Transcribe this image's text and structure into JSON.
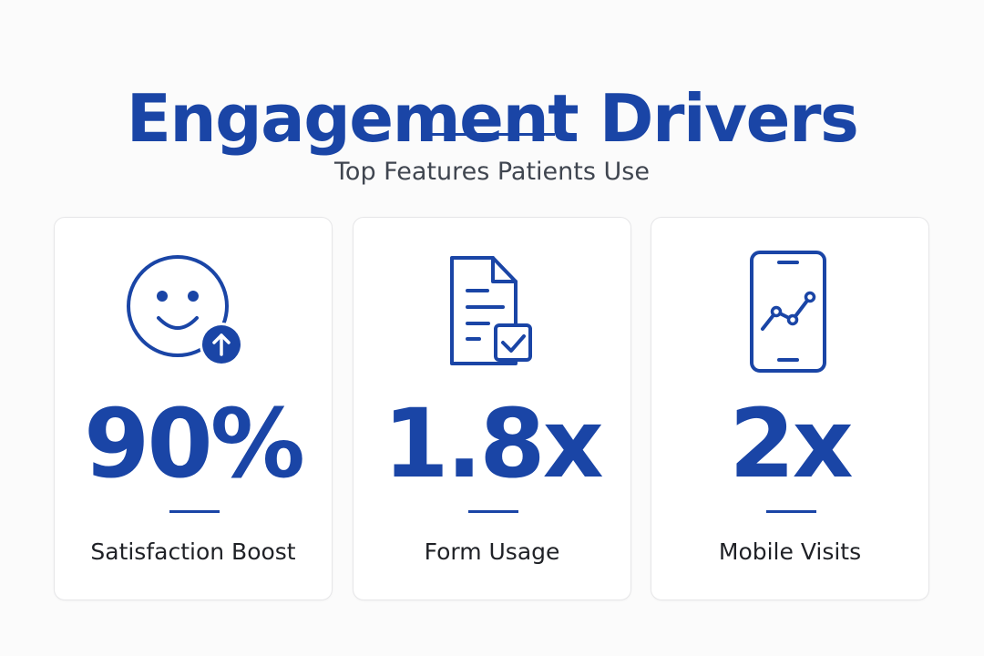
{
  "header": {
    "title": "Engagement Drivers",
    "subtitle": "Top Features Patients Use"
  },
  "theme": {
    "accent": "#1a45a6",
    "text": "#1f2126",
    "muted": "#404650",
    "card_border": "#e6e6e8",
    "background": "#fbfbfb"
  },
  "cards": [
    {
      "icon": "smiley-up-arrow-icon",
      "value": "90%",
      "label": "Satisfaction Boost"
    },
    {
      "icon": "document-checkmark-icon",
      "value": "1.8x",
      "label": "Form Usage"
    },
    {
      "icon": "mobile-chart-icon",
      "value": "2x",
      "label": "Mobile Visits"
    }
  ]
}
